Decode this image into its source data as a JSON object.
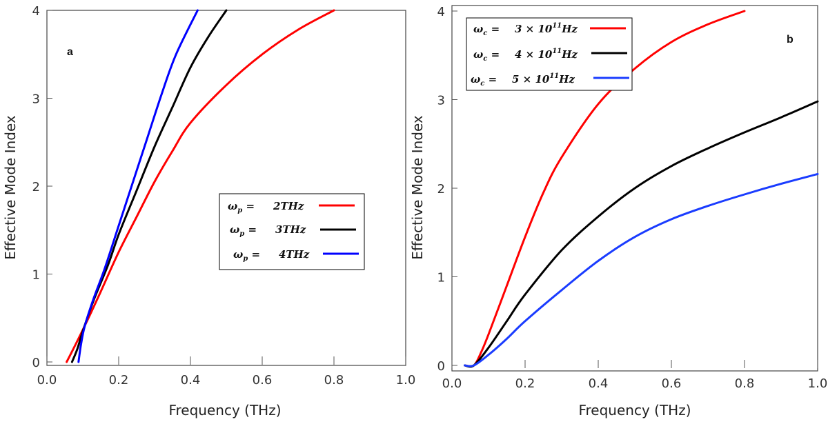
{
  "chart_data": [
    {
      "type": "line",
      "panel_label": "a",
      "xlabel": "Frequency (THz)",
      "ylabel": "Effective Mode Index",
      "xlim": [
        0.0,
        1.0
      ],
      "ylim": [
        0,
        4
      ],
      "xticks": [
        "0.0",
        "0.2",
        "0.4",
        "0.6",
        "0.8",
        "1.0"
      ],
      "yticks": [
        "0",
        "1",
        "2",
        "3",
        "4"
      ],
      "legend_position": "center-right",
      "series": [
        {
          "name": "2THz",
          "color": "#ff0000",
          "x": [
            0.055,
            0.08,
            0.11,
            0.15,
            0.2,
            0.25,
            0.3,
            0.35,
            0.4,
            0.5,
            0.6,
            0.7,
            0.8
          ],
          "y": [
            0.0,
            0.2,
            0.45,
            0.8,
            1.25,
            1.65,
            2.05,
            2.4,
            2.72,
            3.15,
            3.5,
            3.78,
            4.0
          ]
        },
        {
          "name": "3THz",
          "color": "#000000",
          "x": [
            0.07,
            0.085,
            0.1,
            0.13,
            0.17,
            0.2,
            0.25,
            0.3,
            0.35,
            0.4,
            0.45,
            0.5
          ],
          "y": [
            0.0,
            0.15,
            0.35,
            0.7,
            1.1,
            1.45,
            1.95,
            2.45,
            2.9,
            3.35,
            3.7,
            4.0
          ]
        },
        {
          "name": "4THz",
          "color": "#0000ff",
          "x": [
            0.088,
            0.095,
            0.105,
            0.13,
            0.16,
            0.2,
            0.24,
            0.28,
            0.32,
            0.36,
            0.42
          ],
          "y": [
            0.0,
            0.2,
            0.4,
            0.72,
            1.05,
            1.55,
            2.05,
            2.55,
            3.05,
            3.5,
            4.0
          ]
        }
      ]
    },
    {
      "type": "line",
      "panel_label": "b",
      "xlabel": "Frequency (THz)",
      "ylabel": "Effective Mode Index",
      "xlim": [
        0.0,
        1.0
      ],
      "ylim": [
        0,
        4
      ],
      "xticks": [
        "0.0",
        "0.2",
        "0.4",
        "0.6",
        "0.8",
        "1.0"
      ],
      "yticks": [
        "0",
        "1",
        "2",
        "3",
        "4"
      ],
      "legend_position": "top-left",
      "series": [
        {
          "name": "3 × 10",
          "exponent": "11",
          "unit": "Hz",
          "color": "#ff0000",
          "x": [
            0.035,
            0.06,
            0.08,
            0.1,
            0.15,
            0.2,
            0.25,
            0.3,
            0.4,
            0.5,
            0.6,
            0.7,
            0.8
          ],
          "y": [
            0.0,
            0.0,
            0.15,
            0.35,
            0.9,
            1.45,
            1.95,
            2.35,
            2.95,
            3.35,
            3.65,
            3.85,
            4.0
          ]
        },
        {
          "name": "4 × 10",
          "exponent": "11",
          "unit": "Hz",
          "color": "#000000",
          "x": [
            0.035,
            0.06,
            0.1,
            0.15,
            0.2,
            0.3,
            0.4,
            0.5,
            0.6,
            0.7,
            0.8,
            0.9,
            1.0
          ],
          "y": [
            0.0,
            0.0,
            0.2,
            0.5,
            0.8,
            1.3,
            1.68,
            2.0,
            2.25,
            2.45,
            2.63,
            2.8,
            2.98
          ]
        },
        {
          "name": "5 × 10",
          "exponent": "11",
          "unit": "Hz",
          "color": "#1a3cff",
          "x": [
            0.035,
            0.06,
            0.1,
            0.15,
            0.2,
            0.3,
            0.4,
            0.5,
            0.6,
            0.7,
            0.8,
            0.9,
            1.0
          ],
          "y": [
            0.0,
            0.0,
            0.12,
            0.3,
            0.5,
            0.85,
            1.18,
            1.45,
            1.65,
            1.8,
            1.93,
            2.05,
            2.16
          ]
        }
      ]
    }
  ]
}
